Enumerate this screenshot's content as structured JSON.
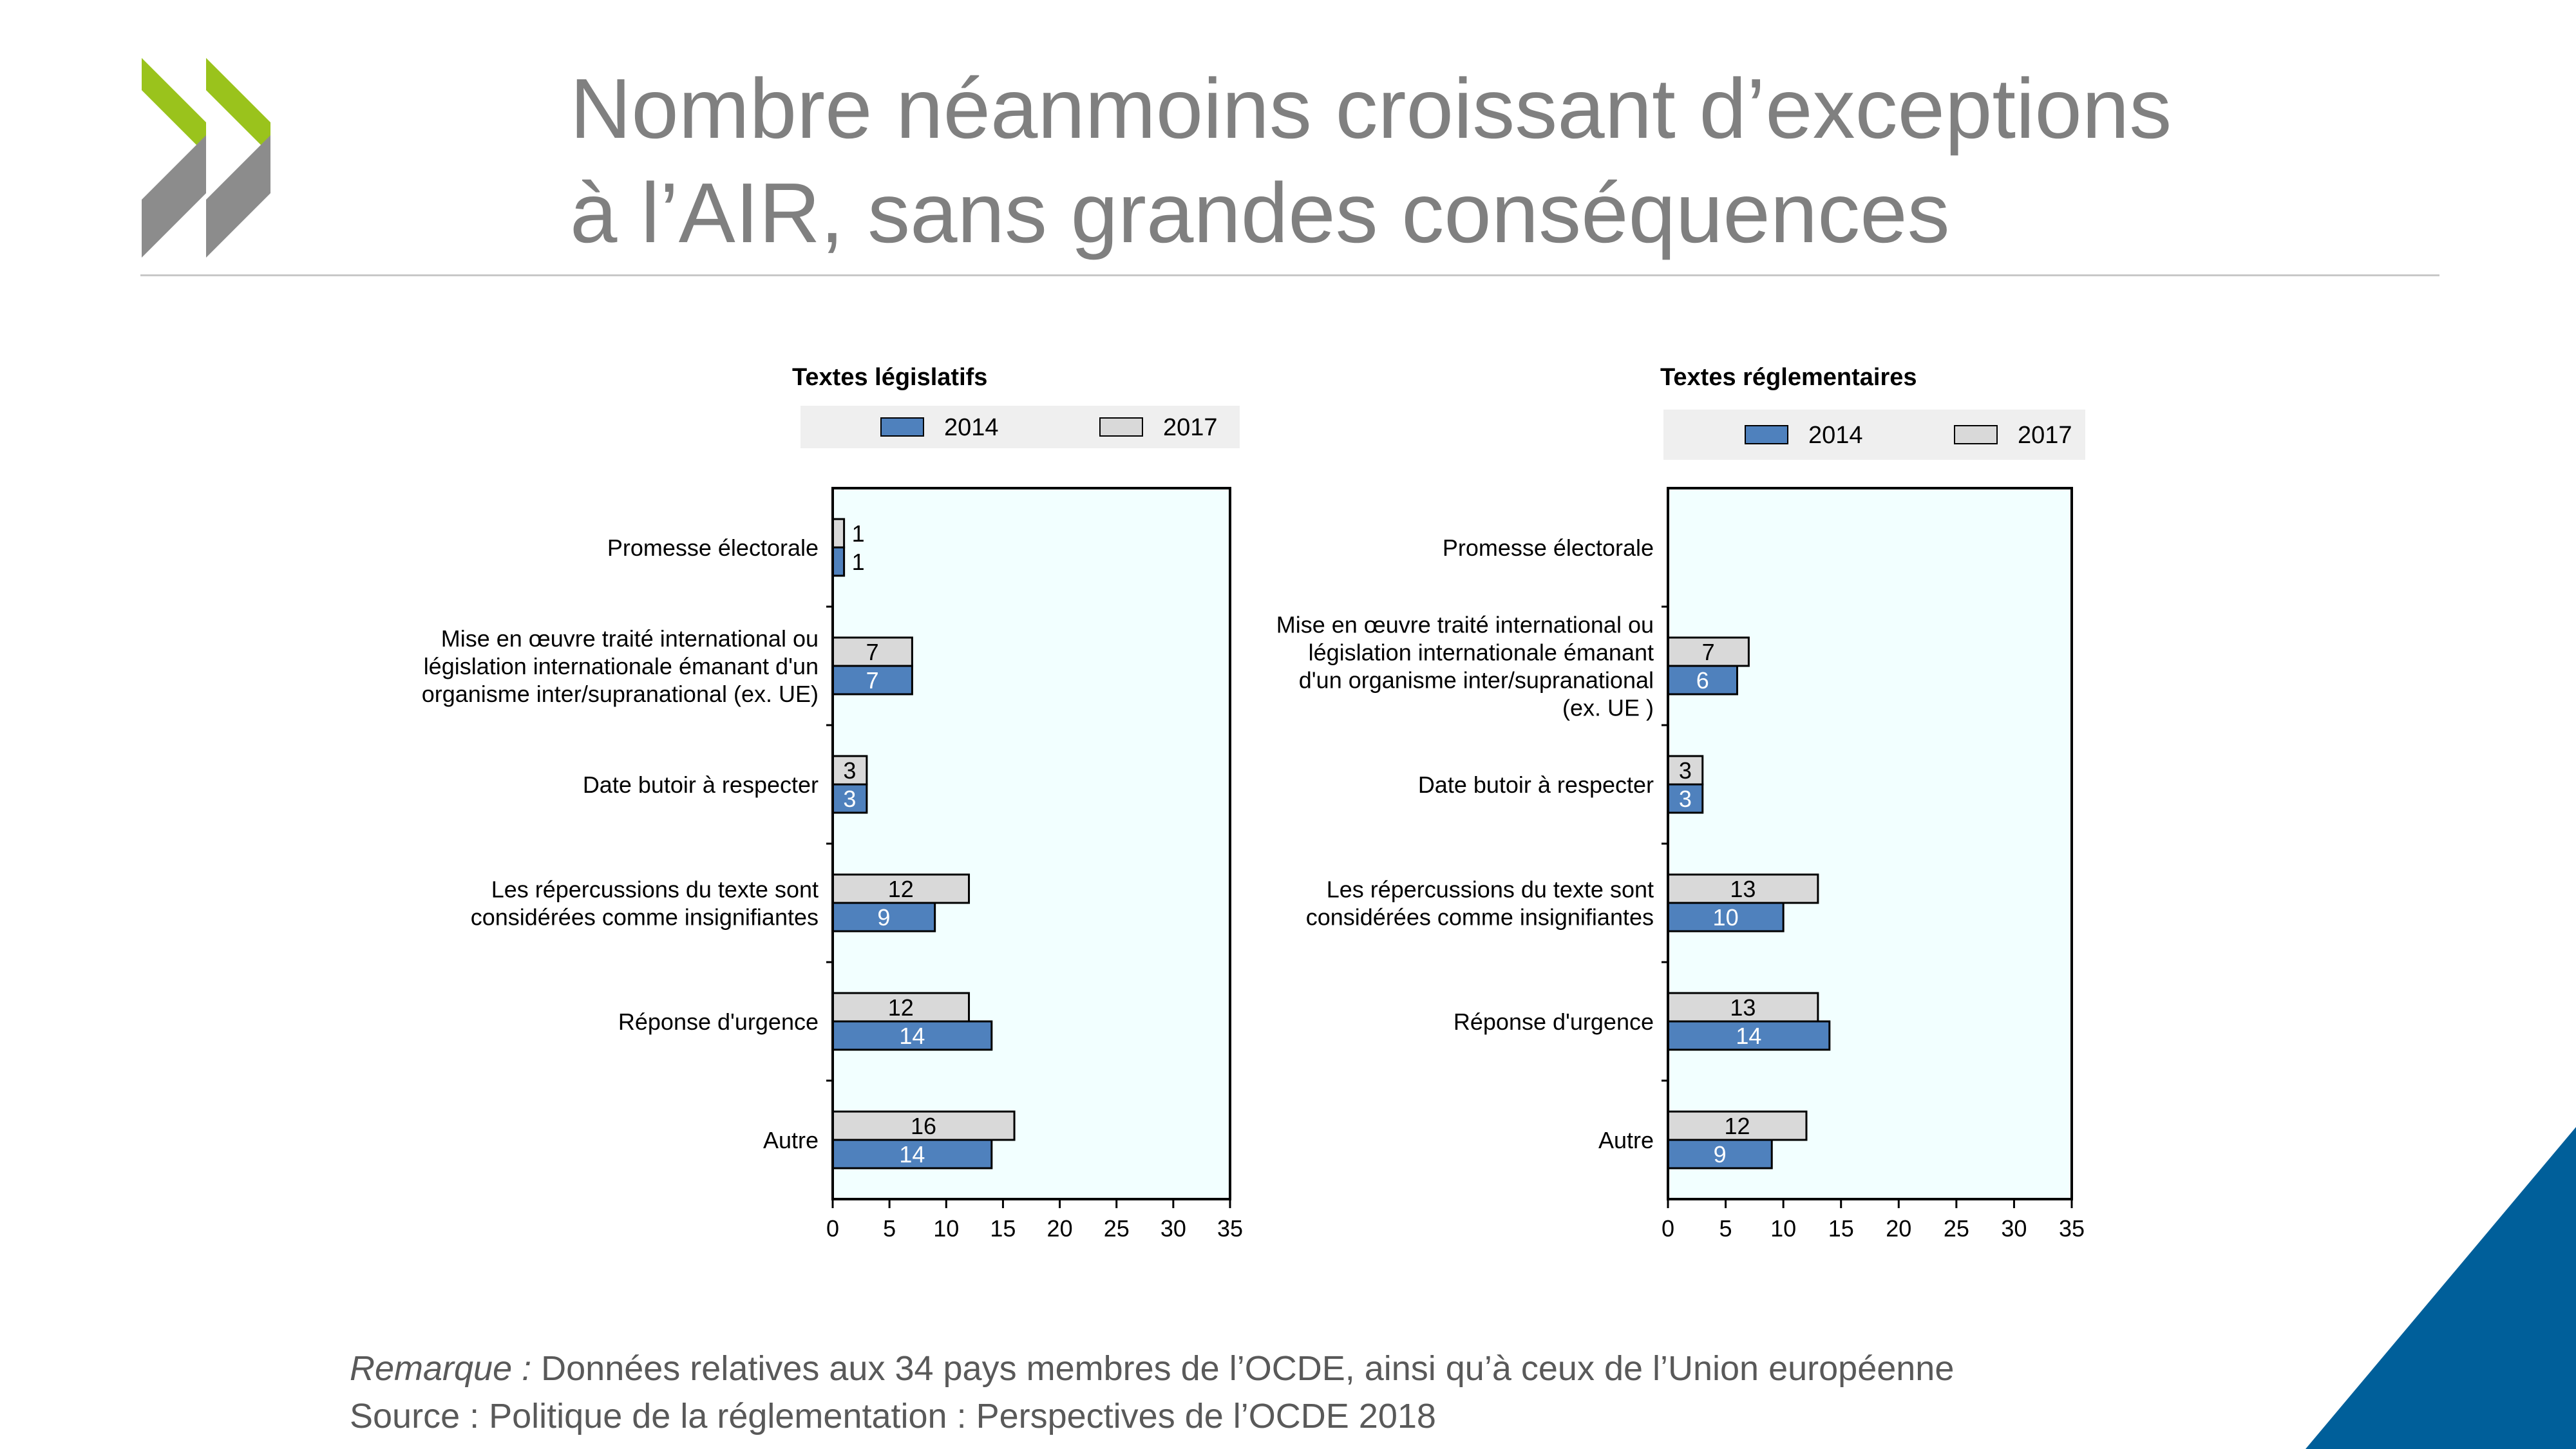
{
  "title": {
    "line1": "Nombre néanmoins croissant d’exceptions",
    "line2": "à l’AIR, sans grandes conséquences"
  },
  "colors": {
    "brand_green": "#9ac31c",
    "brand_gray": "#8c8c8c",
    "accent_blue": "#005f9a",
    "series_2014": "#4f81bd",
    "series_2017": "#d9d9d9",
    "plot_bg": "#f2ffff"
  },
  "chart_data": [
    {
      "type": "bar",
      "orientation": "horizontal",
      "title": "Textes législatifs",
      "categories": [
        [
          "Promesse électorale"
        ],
        [
          "Mise en œuvre traité international ou",
          "législation internationale émanant d'un",
          "organisme inter/supranational (ex. UE)"
        ],
        [
          "Date butoir à respecter"
        ],
        [
          "Les répercussions du texte sont",
          "considérées comme insignifiantes"
        ],
        [
          "Réponse d'urgence"
        ],
        [
          "Autre"
        ]
      ],
      "series": [
        {
          "name": "2017",
          "values": [
            1,
            7,
            3,
            12,
            12,
            16
          ]
        },
        {
          "name": "2014",
          "values": [
            1,
            7,
            3,
            9,
            14,
            14
          ]
        }
      ],
      "legend_order": [
        "2014",
        "2017"
      ],
      "xlim": [
        0,
        35
      ],
      "xticks": [
        0,
        5,
        10,
        15,
        20,
        25,
        30,
        35
      ],
      "legend_position": "top",
      "grid": false
    },
    {
      "type": "bar",
      "orientation": "horizontal",
      "title": "Textes réglementaires",
      "categories": [
        [
          "Promesse électorale"
        ],
        [
          "Mise en œuvre traité international ou",
          "législation internationale émanant",
          "d'un organisme inter/supranational",
          "(ex. UE )"
        ],
        [
          "Date butoir à respecter"
        ],
        [
          "Les répercussions du texte sont",
          "considérées comme insignifiantes"
        ],
        [
          "Réponse d'urgence"
        ],
        [
          "Autre"
        ]
      ],
      "series": [
        {
          "name": "2017",
          "values": [
            null,
            7,
            3,
            13,
            13,
            12
          ]
        },
        {
          "name": "2014",
          "values": [
            null,
            6,
            3,
            10,
            14,
            9
          ]
        }
      ],
      "legend_order": [
        "2014",
        "2017"
      ],
      "xlim": [
        0,
        35
      ],
      "xticks": [
        0,
        5,
        10,
        15,
        20,
        25,
        30,
        35
      ],
      "legend_position": "top",
      "grid": false
    }
  ],
  "note": {
    "label": "Remarque :",
    "text": " Données relatives aux 34 pays membres de l’OCDE, ainsi qu’à ceux de l’Union européenne",
    "source": "Source : Politique de la réglementation : Perspectives de l’OCDE 2018"
  }
}
